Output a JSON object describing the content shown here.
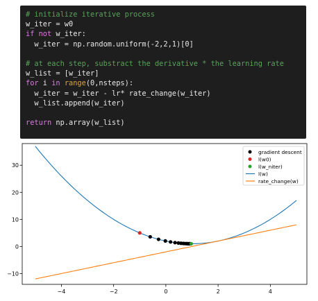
{
  "colors": {
    "code_bg": "#1e1e1e",
    "code_text": "#e8e8e8",
    "code_comment": "#59a35b",
    "code_keyword": "#d97be0",
    "code_builtin": "#d9a441",
    "curve_lw": "#1f77b4",
    "curve_rate": "#ff7f0e",
    "gradient_points": "#000000",
    "point_w0": "#d62728",
    "point_niter": "#2ca02c"
  },
  "code": {
    "lines": [
      [
        {
          "t": "# initialize iterative process",
          "c": "comment"
        }
      ],
      [
        {
          "t": "w_iter = w0",
          "c": "plain"
        }
      ],
      [
        {
          "t": "if",
          "c": "keyword"
        },
        {
          "t": " ",
          "c": "plain"
        },
        {
          "t": "not",
          "c": "keyword"
        },
        {
          "t": " w_iter:",
          "c": "plain"
        }
      ],
      [
        {
          "t": "  w_iter = np.random.uniform(-2,2,1)[0]",
          "c": "plain"
        }
      ],
      [],
      [
        {
          "t": "# at each step, substract the derivative * the learning rate",
          "c": "comment"
        }
      ],
      [
        {
          "t": "w_list = [w_iter]",
          "c": "plain"
        }
      ],
      [
        {
          "t": "for",
          "c": "keyword"
        },
        {
          "t": " i ",
          "c": "plain"
        },
        {
          "t": "in",
          "c": "keyword"
        },
        {
          "t": " ",
          "c": "plain"
        },
        {
          "t": "range",
          "c": "builtin"
        },
        {
          "t": "(0,nsteps):",
          "c": "plain"
        }
      ],
      [
        {
          "t": "  w_iter = w_iter - lr* rate_change(w_iter)",
          "c": "plain"
        }
      ],
      [
        {
          "t": "  w_list.append(w_iter)",
          "c": "plain"
        }
      ],
      [],
      [
        {
          "t": "return",
          "c": "keyword"
        },
        {
          "t": " np.array(w_list)",
          "c": "plain"
        }
      ]
    ]
  },
  "chart_data": {
    "type": "line",
    "xlim": [
      -5.5,
      5.4
    ],
    "ylim": [
      -14,
      38
    ],
    "xticks": [
      -4,
      -2,
      0,
      2,
      4
    ],
    "yticks": [
      -10,
      0,
      10,
      20,
      30
    ],
    "xtick_labels": [
      "−4",
      "−2",
      "0",
      "2",
      "4"
    ],
    "ytick_labels": [
      "−10",
      "0",
      "10",
      "20",
      "30"
    ],
    "grid": false,
    "legend_position": "top-right",
    "series": [
      {
        "name": "l(w)",
        "kind": "line",
        "color": "#1f77b4",
        "function": "(w-1)^2+1",
        "x_range": [
          -5,
          5
        ]
      },
      {
        "name": "rate_change(w)",
        "kind": "line",
        "color": "#ff7f0e",
        "function": "2w-2",
        "x_range": [
          -5,
          5
        ]
      },
      {
        "name": "gradient descent",
        "kind": "scatter",
        "color": "#000000",
        "x": [
          -0.6,
          -0.28,
          -0.02,
          0.18,
          0.35,
          0.48,
          0.58,
          0.67,
          0.74,
          0.8,
          0.85,
          0.89,
          0.92,
          0.95
        ],
        "y": [
          3.56,
          2.64,
          2.04,
          1.67,
          1.42,
          1.27,
          1.18,
          1.11,
          1.07,
          1.04,
          1.02,
          1.01,
          1.01,
          1.0
        ]
      },
      {
        "name": "l(w0)",
        "kind": "scatter",
        "color": "#d62728",
        "x": [
          -1.0
        ],
        "y": [
          5.0
        ]
      },
      {
        "name": "l(w_niter)",
        "kind": "scatter",
        "color": "#2ca02c",
        "x": [
          0.97
        ],
        "y": [
          1.0
        ]
      }
    ],
    "legend": [
      "gradient descent",
      "l(w0)",
      "l(w_niter)",
      "l(w)",
      "rate_change(w)"
    ]
  }
}
